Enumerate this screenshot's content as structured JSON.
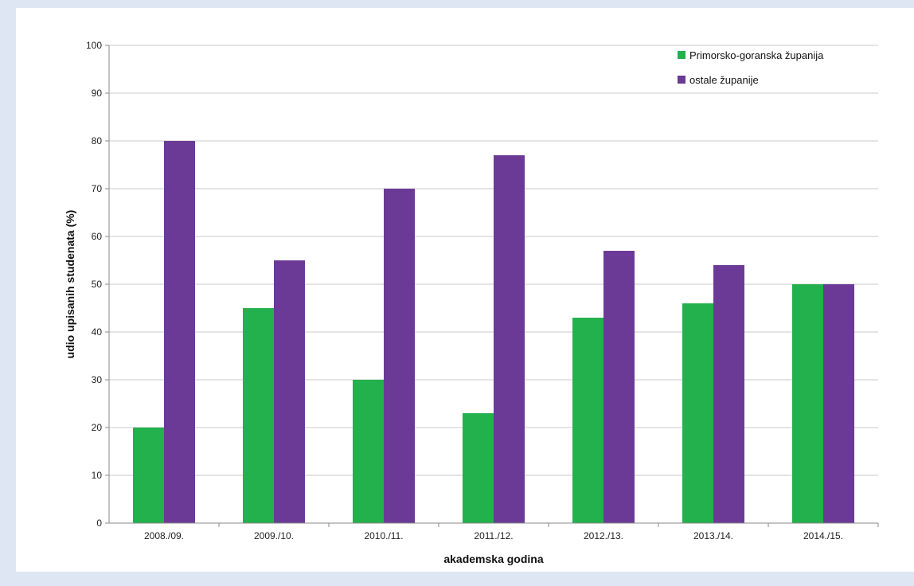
{
  "chart_data": {
    "type": "bar",
    "categories": [
      "2008./09.",
      "2009./10.",
      "2010./11.",
      "2011./12.",
      "2012./13.",
      "2013./14.",
      "2014./15."
    ],
    "series": [
      {
        "name": "Primorsko-goranska županija",
        "color": "#22b14c",
        "values": [
          20,
          45,
          30,
          23,
          43,
          46,
          50
        ]
      },
      {
        "name": "ostale županije",
        "color": "#6b3a96",
        "values": [
          80,
          55,
          70,
          77,
          57,
          54,
          50
        ]
      }
    ],
    "xlabel": "akademska godina",
    "ylabel": "udio upisanih studenata (%)",
    "ylim": [
      0,
      100
    ],
    "yticks": [
      0,
      10,
      20,
      30,
      40,
      50,
      60,
      70,
      80,
      90,
      100
    ],
    "grid": true,
    "legend_position": "top-right"
  }
}
